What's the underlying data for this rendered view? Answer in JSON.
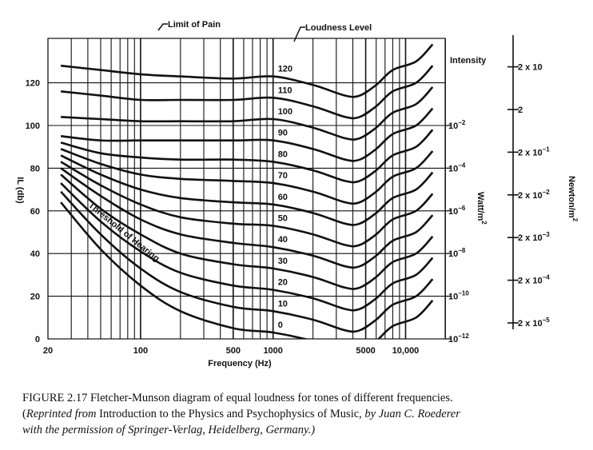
{
  "chart_data": {
    "type": "line",
    "title": "",
    "xlabel": "Frequency (Hz)",
    "ylabel": "IL (db)",
    "x_scale": "log",
    "xlim": [
      20,
      20000
    ],
    "ylim": [
      0,
      130
    ],
    "x_ticks": [
      "20",
      "100",
      "500",
      "1000",
      "5000",
      "10,000"
    ],
    "y_ticks": [
      "0",
      "20",
      "40",
      "60",
      "80",
      "100",
      "120"
    ],
    "grid": true,
    "annotations": {
      "limit_of_pain": "Limit of Pain",
      "loudness_level": "Loudness Level",
      "threshold": "Threshold of Hearing"
    },
    "right_axis_1": {
      "label": "Watt/m",
      "label_sup": "2",
      "header": "Intensity",
      "ticks": [
        {
          "base": "10",
          "exp": "−2",
          "il": 100
        },
        {
          "base": "10",
          "exp": "−4",
          "il": 80
        },
        {
          "base": "10",
          "exp": "−6",
          "il": 60
        },
        {
          "base": "10",
          "exp": "−8",
          "il": 40
        },
        {
          "base": "10",
          "exp": "−10",
          "il": 20
        },
        {
          "base": "10",
          "exp": "−12",
          "il": 0
        }
      ]
    },
    "right_axis_2": {
      "label": "Newton/m",
      "label_sup": "2",
      "ticks": [
        {
          "base": "2 x 10",
          "exp": "",
          "il": 120
        },
        {
          "base": "2",
          "exp": "",
          "il": 100
        },
        {
          "base": "2 x 10",
          "exp": "−1",
          "il": 80
        },
        {
          "base": "2 x 10",
          "exp": "−2",
          "il": 60
        },
        {
          "base": "2 x 10",
          "exp": "−3",
          "il": 40
        },
        {
          "base": "2 x 10",
          "exp": "−4",
          "il": 20
        },
        {
          "base": "2 x 10",
          "exp": "−5",
          "il": 0
        }
      ]
    },
    "series": [
      {
        "name": "0",
        "label_at": [
          1000,
          3
        ],
        "points": [
          [
            25,
            64
          ],
          [
            50,
            42
          ],
          [
            100,
            25
          ],
          [
            200,
            13
          ],
          [
            500,
            5
          ],
          [
            1000,
            3
          ],
          [
            2000,
            -1
          ],
          [
            3500,
            -6
          ],
          [
            4500,
            -6
          ],
          [
            6000,
            -1
          ],
          [
            8000,
            6
          ],
          [
            12000,
            10
          ],
          [
            16000,
            18
          ]
        ]
      },
      {
        "name": "10",
        "label_at": [
          1000,
          13
        ],
        "points": [
          [
            25,
            69
          ],
          [
            50,
            49
          ],
          [
            100,
            33
          ],
          [
            200,
            22
          ],
          [
            500,
            15
          ],
          [
            1000,
            13
          ],
          [
            2000,
            9
          ],
          [
            3500,
            4
          ],
          [
            4500,
            4
          ],
          [
            6000,
            9
          ],
          [
            8000,
            16
          ],
          [
            12000,
            20
          ],
          [
            16000,
            28
          ]
        ]
      },
      {
        "name": "20",
        "label_at": [
          1000,
          23
        ],
        "points": [
          [
            25,
            73
          ],
          [
            50,
            55
          ],
          [
            100,
            41
          ],
          [
            200,
            31
          ],
          [
            500,
            25
          ],
          [
            1000,
            23
          ],
          [
            2000,
            19
          ],
          [
            3500,
            14
          ],
          [
            4500,
            14
          ],
          [
            6000,
            19
          ],
          [
            8000,
            26
          ],
          [
            12000,
            30
          ],
          [
            16000,
            38
          ]
        ]
      },
      {
        "name": "30",
        "label_at": [
          1000,
          33
        ],
        "points": [
          [
            25,
            77
          ],
          [
            50,
            61
          ],
          [
            100,
            49
          ],
          [
            200,
            40
          ],
          [
            500,
            35
          ],
          [
            1000,
            33
          ],
          [
            2000,
            29
          ],
          [
            3500,
            24
          ],
          [
            4500,
            24
          ],
          [
            6000,
            29
          ],
          [
            8000,
            36
          ],
          [
            12000,
            40
          ],
          [
            16000,
            48
          ]
        ]
      },
      {
        "name": "40",
        "label_at": [
          1000,
          43
        ],
        "points": [
          [
            25,
            80
          ],
          [
            50,
            67
          ],
          [
            100,
            56
          ],
          [
            200,
            49
          ],
          [
            500,
            45
          ],
          [
            1000,
            43
          ],
          [
            2000,
            39
          ],
          [
            3500,
            34
          ],
          [
            4500,
            34
          ],
          [
            6000,
            39
          ],
          [
            8000,
            46
          ],
          [
            12000,
            50
          ],
          [
            16000,
            58
          ]
        ]
      },
      {
        "name": "50",
        "label_at": [
          1000,
          53
        ],
        "points": [
          [
            25,
            83
          ],
          [
            50,
            72
          ],
          [
            100,
            63
          ],
          [
            200,
            57
          ],
          [
            500,
            54
          ],
          [
            1000,
            53
          ],
          [
            2000,
            49
          ],
          [
            3500,
            44
          ],
          [
            4500,
            44
          ],
          [
            6000,
            49
          ],
          [
            8000,
            56
          ],
          [
            12000,
            60
          ],
          [
            16000,
            68
          ]
        ]
      },
      {
        "name": "60",
        "label_at": [
          1000,
          63
        ],
        "points": [
          [
            25,
            86
          ],
          [
            50,
            77
          ],
          [
            100,
            70
          ],
          [
            200,
            66
          ],
          [
            500,
            64
          ],
          [
            1000,
            63
          ],
          [
            2000,
            59
          ],
          [
            3500,
            54
          ],
          [
            4500,
            54
          ],
          [
            6000,
            59
          ],
          [
            8000,
            66
          ],
          [
            12000,
            70
          ],
          [
            16000,
            78
          ]
        ]
      },
      {
        "name": "70",
        "label_at": [
          1000,
          73
        ],
        "points": [
          [
            25,
            89
          ],
          [
            50,
            82
          ],
          [
            100,
            77
          ],
          [
            200,
            75
          ],
          [
            500,
            74
          ],
          [
            1000,
            73
          ],
          [
            2000,
            69
          ],
          [
            3500,
            64
          ],
          [
            4500,
            64
          ],
          [
            6000,
            69
          ],
          [
            8000,
            76
          ],
          [
            12000,
            80
          ],
          [
            16000,
            88
          ]
        ]
      },
      {
        "name": "80",
        "label_at": [
          1000,
          83
        ],
        "points": [
          [
            25,
            92
          ],
          [
            50,
            87
          ],
          [
            100,
            85
          ],
          [
            200,
            84
          ],
          [
            500,
            84
          ],
          [
            1000,
            83
          ],
          [
            2000,
            79
          ],
          [
            3500,
            74
          ],
          [
            4500,
            74
          ],
          [
            6000,
            79
          ],
          [
            8000,
            86
          ],
          [
            12000,
            90
          ],
          [
            16000,
            98
          ]
        ]
      },
      {
        "name": "90",
        "label_at": [
          1000,
          93
        ],
        "points": [
          [
            25,
            95
          ],
          [
            50,
            93
          ],
          [
            100,
            93
          ],
          [
            200,
            93
          ],
          [
            500,
            93
          ],
          [
            1000,
            93
          ],
          [
            2000,
            89
          ],
          [
            3500,
            84
          ],
          [
            4500,
            84
          ],
          [
            6000,
            89
          ],
          [
            8000,
            96
          ],
          [
            12000,
            100
          ],
          [
            16000,
            108
          ]
        ]
      },
      {
        "name": "100",
        "label_at": [
          1000,
          103
        ],
        "points": [
          [
            25,
            104
          ],
          [
            50,
            103
          ],
          [
            100,
            102
          ],
          [
            200,
            102
          ],
          [
            500,
            102
          ],
          [
            1000,
            103
          ],
          [
            2000,
            99
          ],
          [
            3500,
            94
          ],
          [
            4500,
            94
          ],
          [
            6000,
            99
          ],
          [
            8000,
            106
          ],
          [
            12000,
            110
          ],
          [
            16000,
            118
          ]
        ]
      },
      {
        "name": "110",
        "label_at": [
          1000,
          113
        ],
        "points": [
          [
            25,
            116
          ],
          [
            50,
            114
          ],
          [
            100,
            112
          ],
          [
            200,
            112
          ],
          [
            500,
            112
          ],
          [
            1000,
            113
          ],
          [
            2000,
            109
          ],
          [
            3500,
            104
          ],
          [
            4500,
            104
          ],
          [
            6000,
            109
          ],
          [
            8000,
            116
          ],
          [
            12000,
            120
          ],
          [
            16000,
            128
          ]
        ]
      },
      {
        "name": "120",
        "label_at": [
          1000,
          123
        ],
        "points": [
          [
            25,
            128
          ],
          [
            50,
            126
          ],
          [
            100,
            124
          ],
          [
            200,
            123
          ],
          [
            500,
            122
          ],
          [
            1000,
            123
          ],
          [
            2000,
            119
          ],
          [
            3500,
            114
          ],
          [
            4500,
            114
          ],
          [
            6000,
            119
          ],
          [
            8000,
            126
          ],
          [
            12000,
            130
          ],
          [
            16000,
            138
          ]
        ]
      }
    ]
  },
  "caption": {
    "line1": "FIGURE 2.17  Fletcher-Munson diagram of equal loudness for tones of different frequencies.",
    "line2_pre": "(",
    "line2_italic_1": "Reprinted from",
    "line2_mid": " Introduction to the Physics and Psychophysics of Music, ",
    "line2_italic_2": "by Juan C. Roederer",
    "line3": "with the permission of Springer-Verlag, Heidelberg, Germany.)"
  }
}
